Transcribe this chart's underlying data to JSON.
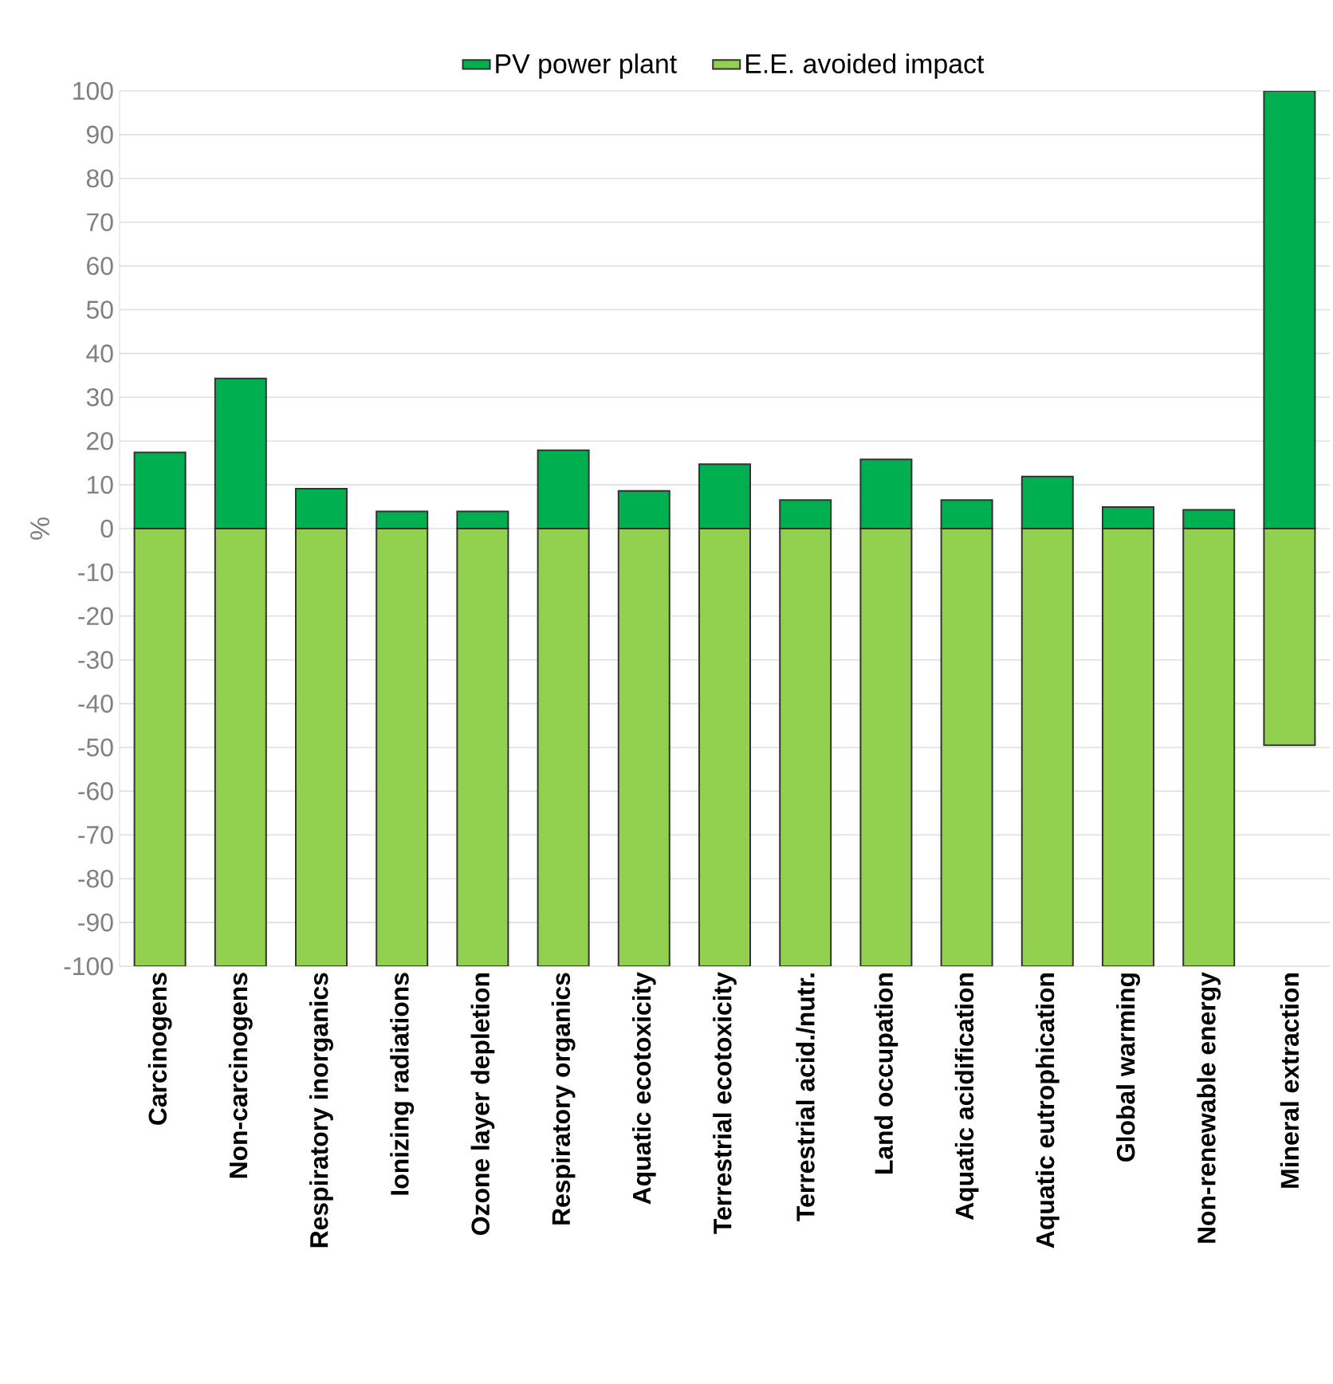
{
  "chart_data": {
    "type": "bar",
    "stacked": true,
    "ylabel": "%",
    "grid": "y",
    "legend": "top",
    "categories": [
      "Carcinogens",
      "Non-carcinogens",
      "Respiratory inorganics",
      "Ionizing radiations",
      "Ozone layer depletion",
      "Respiratory organics",
      "Aquatic ecotoxicity",
      "Terrestrial ecotoxicity",
      "Terrestrial acid./nutr.",
      "Land occupation",
      "Aquatic acidification",
      "Aquatic eutrophication",
      "Global warming",
      "Non-renewable energy",
      "Mineral extraction"
    ],
    "series": [
      {
        "name": "PV power plant",
        "color": "#00b050",
        "values": [
          17.4,
          34.3,
          9.1,
          3.9,
          3.9,
          17.9,
          8.6,
          14.7,
          6.5,
          15.8,
          6.5,
          11.9,
          4.9,
          4.3,
          100
        ]
      },
      {
        "name": "E.E. avoided impact",
        "color": "#92d050",
        "values": [
          -100,
          -100,
          -100,
          -100,
          -100,
          -100,
          -100,
          -100,
          -100,
          -100,
          -100,
          -100,
          -100,
          -100,
          -49.5
        ]
      }
    ],
    "ylim": [
      -100,
      100
    ],
    "yticks": [
      -100,
      -90,
      -80,
      -70,
      -60,
      -50,
      -40,
      -30,
      -20,
      -10,
      0,
      10,
      20,
      30,
      40,
      50,
      60,
      70,
      80,
      90,
      100
    ]
  }
}
